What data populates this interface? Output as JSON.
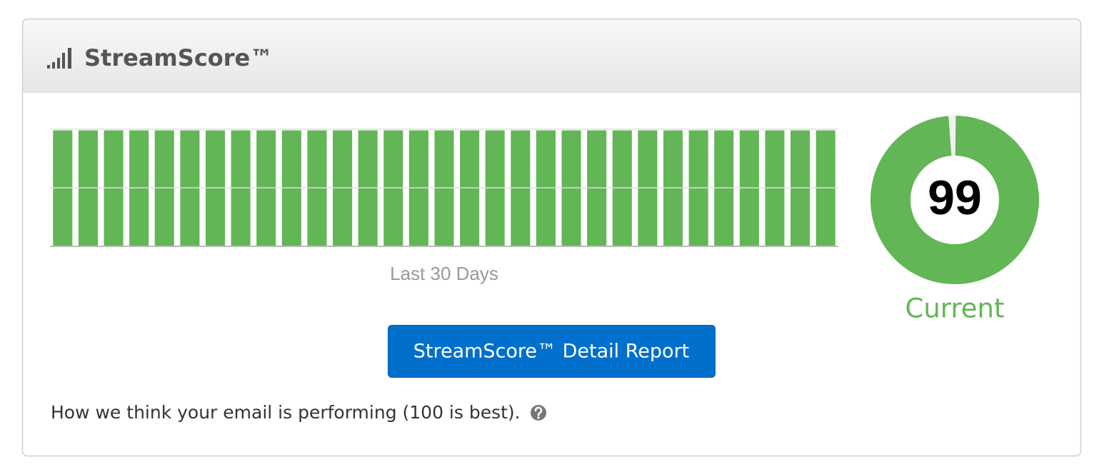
{
  "header": {
    "title": "StreamScore™"
  },
  "chart_data": [
    {
      "type": "bar",
      "xlabel": "Last 30 Days",
      "values": [
        99,
        99,
        99,
        99,
        99,
        99,
        99,
        99,
        99,
        99,
        99,
        99,
        99,
        99,
        99,
        99,
        99,
        99,
        99,
        99,
        99,
        99,
        99,
        99,
        99,
        99,
        99,
        99,
        99,
        99,
        99
      ],
      "color": "#62b655",
      "ylim": [
        0,
        100
      ],
      "yticks": [
        0,
        50,
        100
      ],
      "grid": true
    },
    {
      "type": "donut",
      "value": 99,
      "label": "Current",
      "lim": [
        0,
        100
      ],
      "color": "#62b655"
    }
  ],
  "button": {
    "label": "StreamScore™ Detail Report"
  },
  "footer": {
    "text": "How we think your email is performing (100 is best)."
  }
}
